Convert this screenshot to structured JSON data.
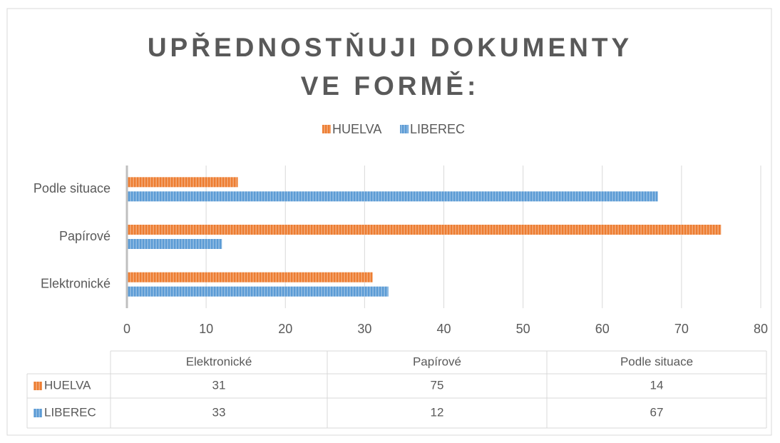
{
  "chart_data": {
    "type": "hbar",
    "title": "UPŘEDNOSTŇUJI DOKUMENTY VE FORMĚ:",
    "categories": [
      "Elektronické",
      "Papírové",
      "Podle situace"
    ],
    "series": [
      {
        "name": "HUELVA",
        "color": "#ed7d31",
        "values": [
          31,
          75,
          14
        ]
      },
      {
        "name": "LIBEREC",
        "color": "#5b9bd5",
        "values": [
          33,
          12,
          67
        ]
      }
    ],
    "xlim": [
      0,
      80
    ],
    "xticks": [
      0,
      10,
      20,
      30,
      40,
      50,
      60,
      70,
      80
    ],
    "grid": true,
    "legend": "top"
  }
}
